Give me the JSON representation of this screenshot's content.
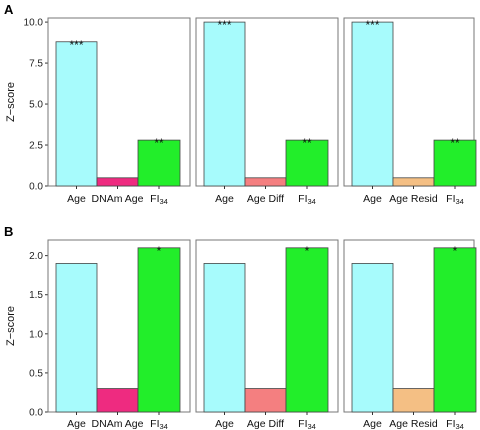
{
  "chart_data": [
    {
      "panel": "A",
      "type": "bar",
      "ylabel": "Z−score",
      "ylim": [
        0,
        10.25
      ],
      "yticks": [
        "0.0",
        "2.5",
        "5.0",
        "7.5",
        "10.0"
      ],
      "ytick_values": [
        0,
        2.5,
        5,
        7.5,
        10
      ],
      "grid": false,
      "groups": [
        {
          "bars": [
            {
              "label": "Age",
              "label_sub": "",
              "value": 8.8,
              "color": "#a7fbfc",
              "sig": "***"
            },
            {
              "label": "DNAm Age",
              "label_sub": "",
              "value": 0.5,
              "color": "#ee2b80",
              "sig": ""
            },
            {
              "label": "FI",
              "label_sub": "34",
              "value": 2.8,
              "color": "#22ee2a",
              "sig": "**"
            }
          ]
        },
        {
          "bars": [
            {
              "label": "Age",
              "label_sub": "",
              "value": 10.0,
              "color": "#a7fbfc",
              "sig": "***"
            },
            {
              "label": "Age Diff",
              "label_sub": "",
              "value": 0.5,
              "color": "#f47f80",
              "sig": ""
            },
            {
              "label": "FI",
              "label_sub": "34",
              "value": 2.8,
              "color": "#22ee2a",
              "sig": "**"
            }
          ]
        },
        {
          "bars": [
            {
              "label": "Age",
              "label_sub": "",
              "value": 10.0,
              "color": "#a7fbfc",
              "sig": "***"
            },
            {
              "label": "Age Resid",
              "label_sub": "",
              "value": 0.5,
              "color": "#f4bf84",
              "sig": ""
            },
            {
              "label": "FI",
              "label_sub": "34",
              "value": 2.8,
              "color": "#22ee2a",
              "sig": "**"
            }
          ]
        }
      ]
    },
    {
      "panel": "B",
      "type": "bar",
      "ylabel": "Z−score",
      "ylim": [
        0,
        2.2
      ],
      "yticks": [
        "0.0",
        "0.5",
        "1.0",
        "1.5",
        "2.0"
      ],
      "ytick_values": [
        0,
        0.5,
        1.0,
        1.5,
        2.0
      ],
      "grid": false,
      "groups": [
        {
          "bars": [
            {
              "label": "Age",
              "label_sub": "",
              "value": 1.9,
              "color": "#a7fbfc",
              "sig": ""
            },
            {
              "label": "DNAm Age",
              "label_sub": "",
              "value": 0.3,
              "color": "#ee2b80",
              "sig": ""
            },
            {
              "label": "FI",
              "label_sub": "34",
              "value": 2.1,
              "color": "#22ee2a",
              "sig": "*"
            }
          ]
        },
        {
          "bars": [
            {
              "label": "Age",
              "label_sub": "",
              "value": 1.9,
              "color": "#a7fbfc",
              "sig": ""
            },
            {
              "label": "Age Diff",
              "label_sub": "",
              "value": 0.3,
              "color": "#f47f80",
              "sig": ""
            },
            {
              "label": "FI",
              "label_sub": "34",
              "value": 2.1,
              "color": "#22ee2a",
              "sig": "*"
            }
          ]
        },
        {
          "bars": [
            {
              "label": "Age",
              "label_sub": "",
              "value": 1.9,
              "color": "#a7fbfc",
              "sig": ""
            },
            {
              "label": "Age Resid",
              "label_sub": "",
              "value": 0.3,
              "color": "#f4bf84",
              "sig": ""
            },
            {
              "label": "FI",
              "label_sub": "34",
              "value": 2.1,
              "color": "#22ee2a",
              "sig": "*"
            }
          ]
        }
      ]
    }
  ]
}
